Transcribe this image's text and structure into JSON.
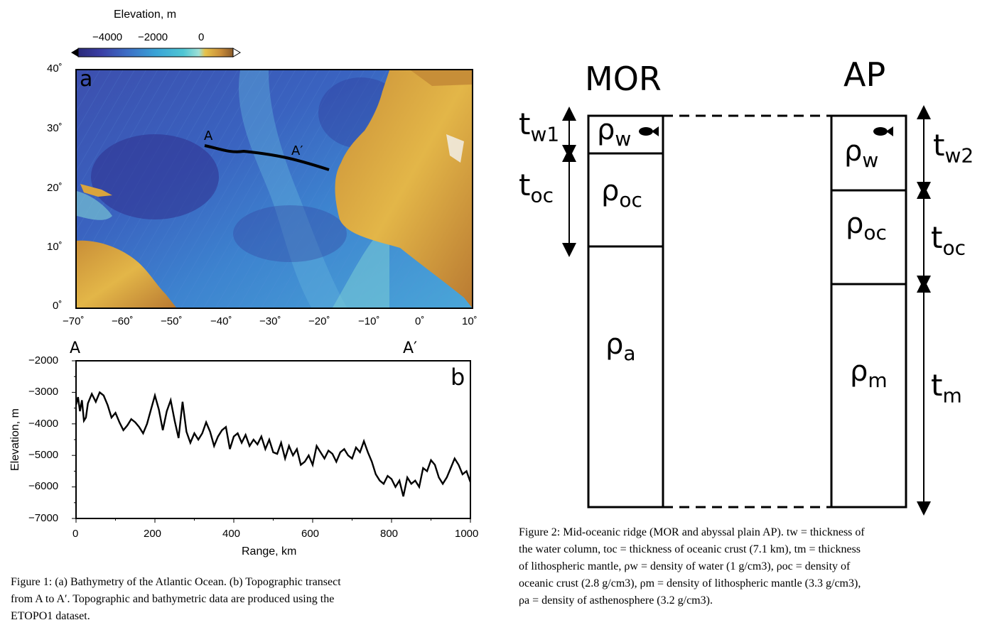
{
  "fig1": {
    "colorbar": {
      "title": "Elevation, m",
      "ticks": [
        "−4000",
        "−2000",
        "0"
      ],
      "colors": [
        "#2b2a7a",
        "#3b3fa5",
        "#3d6fc6",
        "#39a3d6",
        "#4fc6d4",
        "#9fe0d6",
        "#e6c24a",
        "#c98e3a",
        "#8a5a2a"
      ]
    },
    "map": {
      "panel_label": "a",
      "lat_ticks": [
        "40˚",
        "30˚",
        "20˚",
        "10˚",
        "0˚"
      ],
      "lon_ticks": [
        "−70˚",
        "−60˚",
        "−50˚",
        "−40˚",
        "−30˚",
        "−20˚",
        "−10˚",
        "0˚",
        "10˚"
      ],
      "transect_start": "A",
      "transect_end": "A′",
      "ocean_color": "#3a78c8",
      "land_color": "#d9a43c"
    },
    "chart_data": {
      "type": "line",
      "panel_label": "b",
      "start_label": "A",
      "end_label": "A′",
      "xlabel": "Range, km",
      "ylabel": "Elevation, m",
      "xlim": [
        0,
        1000
      ],
      "ylim": [
        -7000,
        -2000
      ],
      "x_ticks": [
        "0",
        "200",
        "400",
        "600",
        "800",
        "1000"
      ],
      "y_ticks": [
        "−2000",
        "−3000",
        "−4000",
        "−5000",
        "−6000",
        "−7000"
      ],
      "x": [
        0,
        5,
        10,
        15,
        20,
        25,
        30,
        40,
        50,
        60,
        70,
        80,
        90,
        100,
        110,
        120,
        130,
        140,
        150,
        160,
        170,
        180,
        190,
        200,
        210,
        220,
        230,
        240,
        250,
        260,
        270,
        280,
        290,
        300,
        310,
        320,
        330,
        340,
        350,
        360,
        370,
        380,
        390,
        400,
        410,
        420,
        430,
        440,
        450,
        460,
        470,
        480,
        490,
        500,
        510,
        520,
        530,
        540,
        550,
        560,
        570,
        580,
        590,
        600,
        610,
        620,
        630,
        640,
        650,
        660,
        670,
        680,
        690,
        700,
        710,
        720,
        730,
        740,
        750,
        760,
        770,
        780,
        790,
        800,
        810,
        820,
        830,
        840,
        850,
        860,
        870,
        880,
        890,
        900,
        910,
        920,
        930,
        940,
        950,
        960,
        970,
        980,
        990,
        1000
      ],
      "y": [
        -3400,
        -3150,
        -3600,
        -3250,
        -3900,
        -3800,
        -3350,
        -3050,
        -3300,
        -3000,
        -3100,
        -3400,
        -3800,
        -3650,
        -3950,
        -4200,
        -4050,
        -3850,
        -3950,
        -4100,
        -4300,
        -4000,
        -3550,
        -3100,
        -3550,
        -4200,
        -3600,
        -3250,
        -3900,
        -4450,
        -3300,
        -4250,
        -4600,
        -4300,
        -4500,
        -4300,
        -3950,
        -4250,
        -4700,
        -4400,
        -4200,
        -4100,
        -4800,
        -4400,
        -4300,
        -4600,
        -4350,
        -4700,
        -4500,
        -4650,
        -4400,
        -4800,
        -4500,
        -4900,
        -4950,
        -4600,
        -5100,
        -4700,
        -5000,
        -4800,
        -5300,
        -5200,
        -5000,
        -5300,
        -4700,
        -4900,
        -5100,
        -4850,
        -4950,
        -5200,
        -4900,
        -4800,
        -5000,
        -5100,
        -4750,
        -4900,
        -4550,
        -4900,
        -5200,
        -5600,
        -5800,
        -5900,
        -5650,
        -5750,
        -6000,
        -5800,
        -6300,
        -5700,
        -5900,
        -5800,
        -6000,
        -5400,
        -5500,
        -5150,
        -5300,
        -5700,
        -5900,
        -5700,
        -5400,
        -5100,
        -5300,
        -5600,
        -5500,
        -5850
      ]
    },
    "caption": [
      "Figure 1: (a) Bathymetry of the Atlantic Ocean. (b) Topographic transect",
      "from A to A′. Topographic and bathymetric data are produced using the",
      "ETOPO1 dataset."
    ]
  },
  "fig2": {
    "mor_title": "MOR",
    "ap_title": "AP",
    "mor_layers": {
      "water": "ρw",
      "crust": "ρoc",
      "mantle": "ρa"
    },
    "ap_layers": {
      "water": "ρw",
      "crust": "ρoc",
      "mantle": "ρm"
    },
    "rho_symbol": "ρ",
    "sub_w": "w",
    "sub_oc": "oc",
    "sub_a": "a",
    "sub_m": "m",
    "t_symbol": "t",
    "sub_w1": "w1",
    "sub_w2": "w2",
    "sub_toc": "oc",
    "sub_tm": "m",
    "caption": [
      "Figure 2: Mid-oceanic ridge (MOR and abyssal plain AP). tw = thickness of",
      "the water column, toc = thickness of oceanic crust (7.1 km), tm = thickness",
      "of lithospheric mantle, ρw = density of water (1 g/cm3), ρoc = density of",
      "oceanic crust (2.8 g/cm3), ρm = density of lithospheric mantle (3.3 g/cm3),",
      "ρa = density of asthenosphere (3.2 g/cm3)."
    ]
  }
}
